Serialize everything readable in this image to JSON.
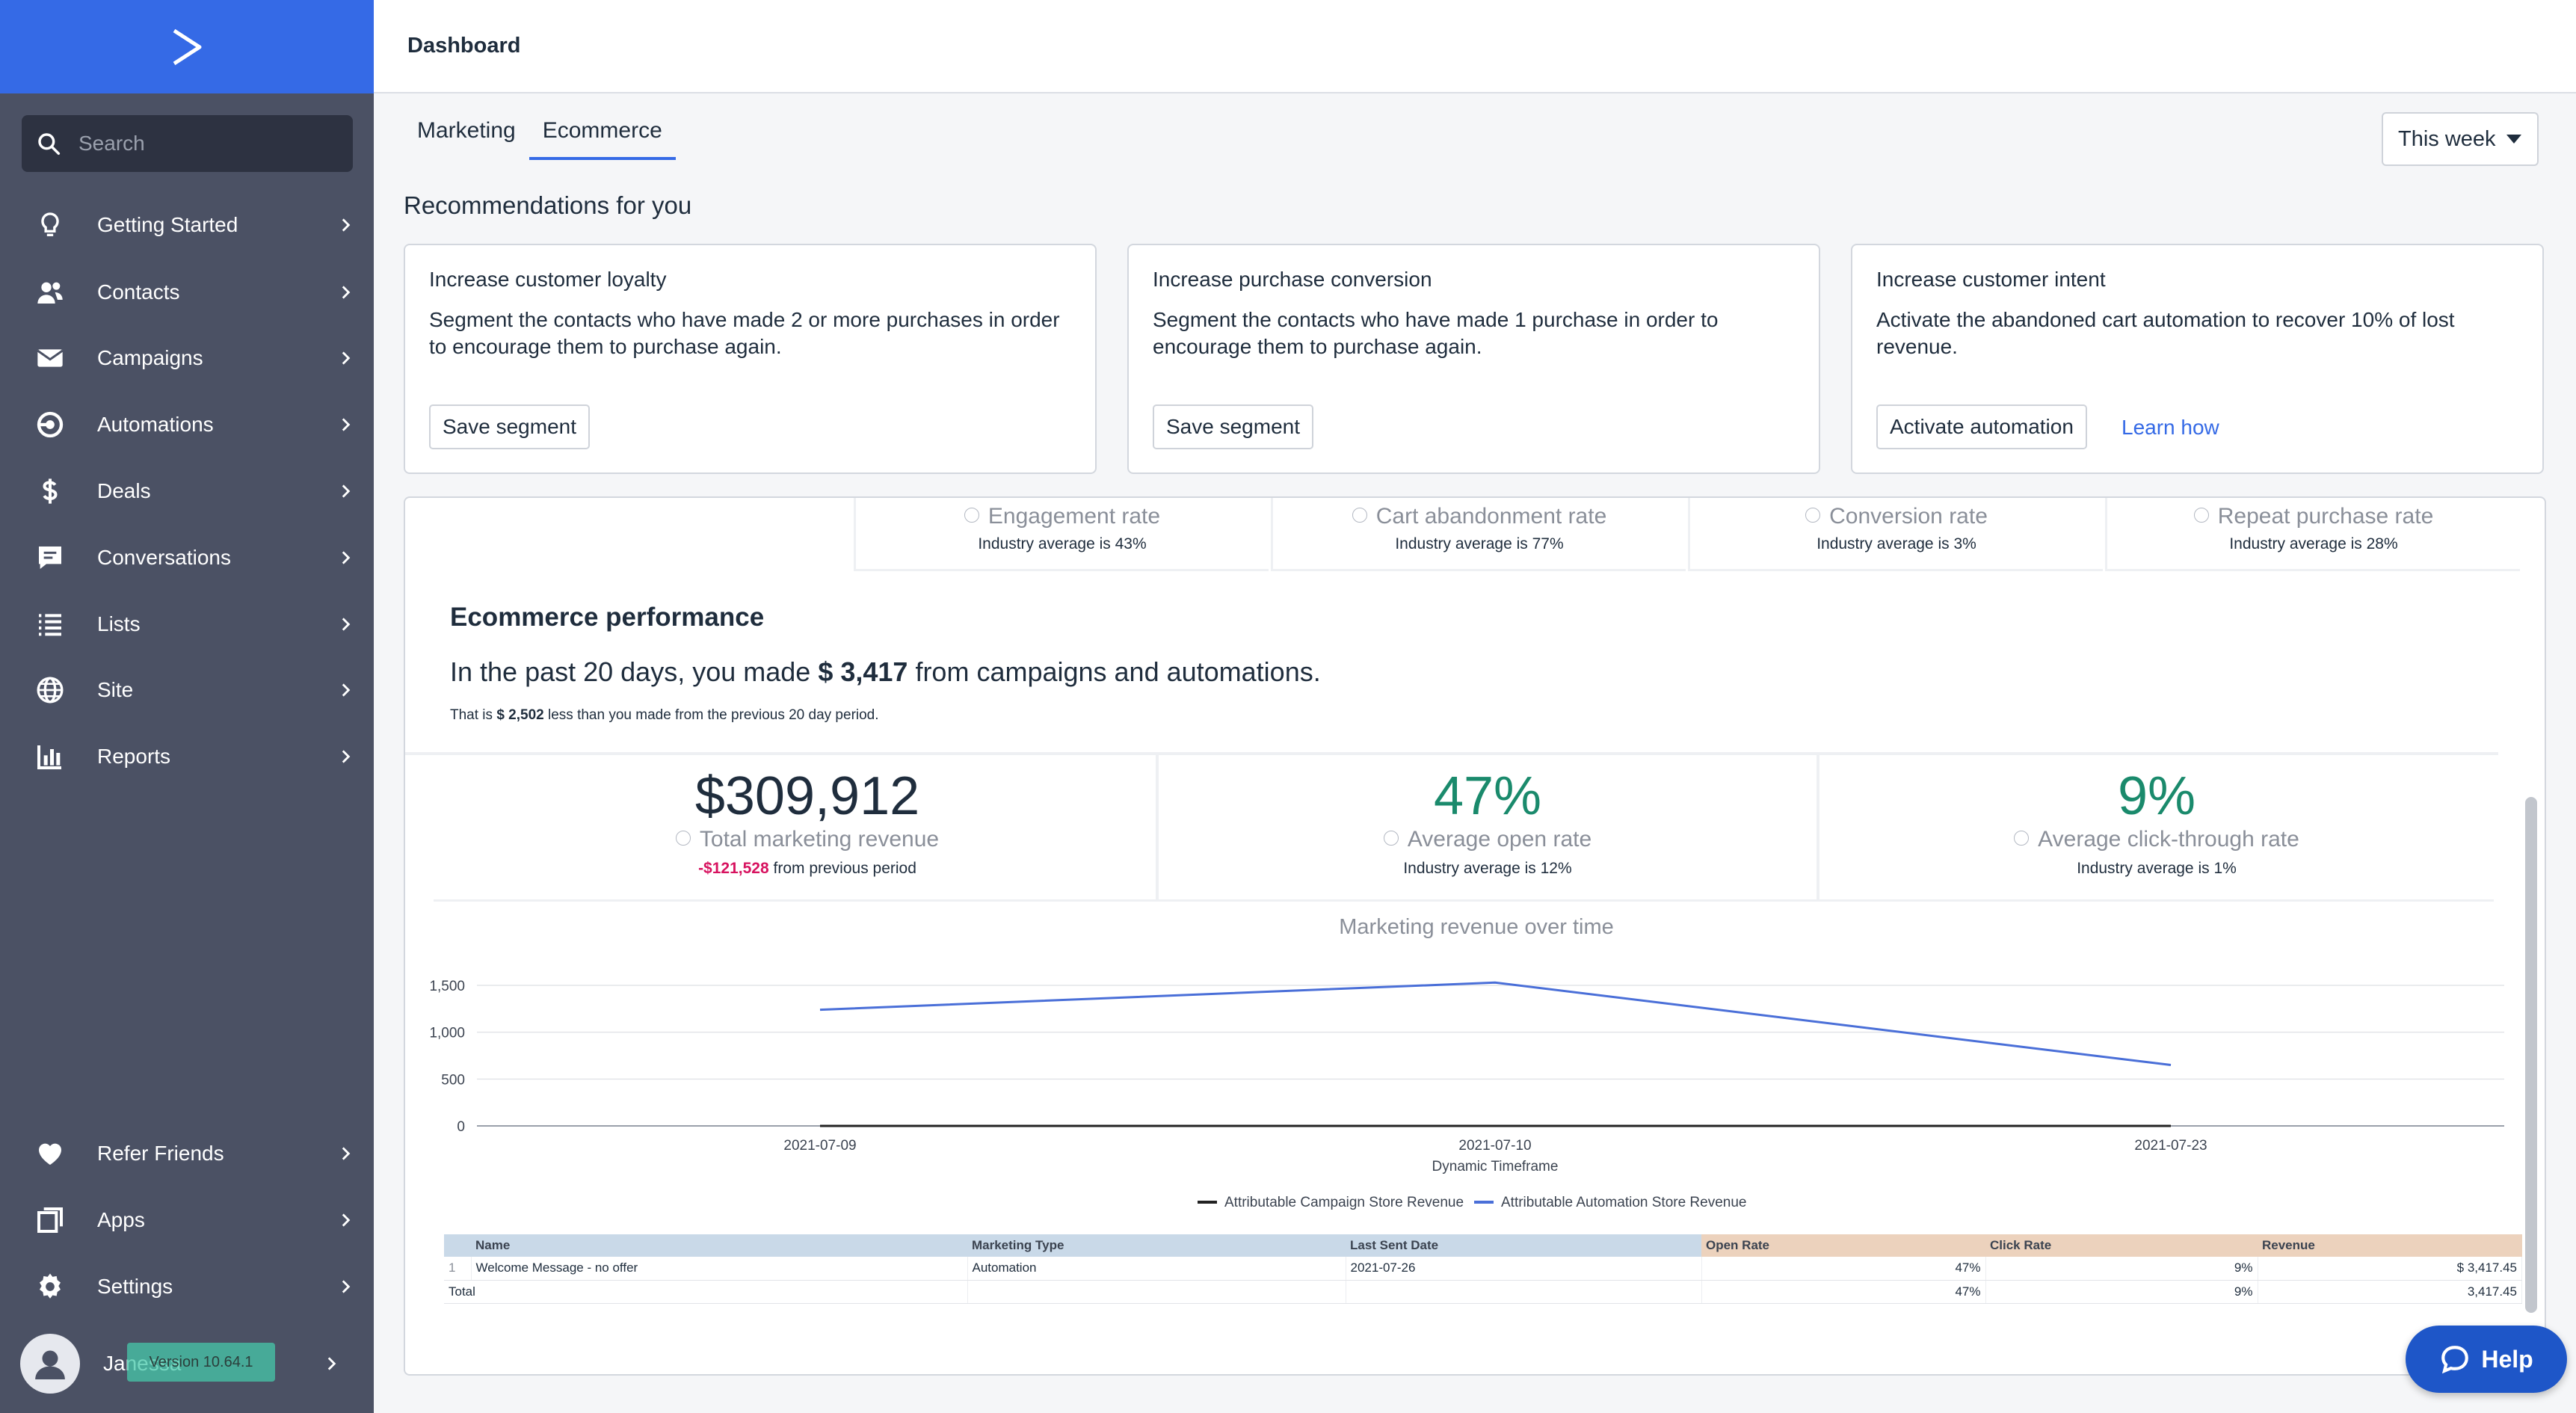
{
  "sidebar": {
    "search_placeholder": "Search",
    "items": [
      {
        "label": "Getting Started",
        "icon": "lightbulb-icon"
      },
      {
        "label": "Contacts",
        "icon": "contacts-icon"
      },
      {
        "label": "Campaigns",
        "icon": "envelope-icon"
      },
      {
        "label": "Automations",
        "icon": "automation-icon"
      },
      {
        "label": "Deals",
        "icon": "dollar-icon"
      },
      {
        "label": "Conversations",
        "icon": "chat-icon"
      },
      {
        "label": "Lists",
        "icon": "list-icon"
      },
      {
        "label": "Site",
        "icon": "globe-icon"
      },
      {
        "label": "Reports",
        "icon": "bar-chart-icon"
      }
    ],
    "bottom_items": [
      {
        "label": "Refer Friends",
        "icon": "heart-icon"
      },
      {
        "label": "Apps",
        "icon": "apps-icon"
      },
      {
        "label": "Settings",
        "icon": "gear-icon"
      }
    ],
    "user_name": "Janessa",
    "version": "Version 10.64.1"
  },
  "header": {
    "title": "Dashboard"
  },
  "tabs": [
    {
      "label": "Marketing"
    },
    {
      "label": "Ecommerce"
    }
  ],
  "period": "This week",
  "recommendations": {
    "title": "Recommendations for you",
    "cards": [
      {
        "title": "Increase customer loyalty",
        "text": "Segment the contacts who have made 2 or more purchases in order to encourage them to purchase again.",
        "button": "Save segment"
      },
      {
        "title": "Increase purchase conversion",
        "text": "Segment the contacts who have made 1 purchase in order to encourage them to purchase again.",
        "button": "Save segment"
      },
      {
        "title": "Increase customer intent",
        "text": "Activate the abandoned cart automation to recover 10% of lost revenue.",
        "button": "Activate automation",
        "link": "Learn how"
      }
    ]
  },
  "metrics": [
    {
      "name": "Engagement rate",
      "avg": "Industry average is 43%"
    },
    {
      "name": "Cart abandonment rate",
      "avg": "Industry average is 77%"
    },
    {
      "name": "Conversion rate",
      "avg": "Industry average is 3%"
    },
    {
      "name": "Repeat purchase rate",
      "avg": "Industry average is 28%"
    }
  ],
  "performance": {
    "title": "Ecommerce performance",
    "summary_pre": "In the past 20 days, you made ",
    "summary_amount": "$ 3,417",
    "summary_post": " from campaigns and automations.",
    "sub_pre": "That is ",
    "sub_amount": "$ 2,502",
    "sub_post": " less than you made from the previous 20 day period.",
    "big": [
      {
        "value": "$309,912",
        "name": "Total marketing revenue",
        "sub_neg": "-$121,528",
        "sub": " from previous period"
      },
      {
        "value": "47%",
        "name": "Average open rate",
        "sub": "Industry average is 12%"
      },
      {
        "value": "9%",
        "name": "Average click-through rate",
        "sub": "Industry average is 1%"
      }
    ]
  },
  "chart_data": {
    "type": "line",
    "title": "Marketing revenue over time",
    "xlabel": "Dynamic Timeframe",
    "ylabel": "",
    "categories": [
      "2021-07-09",
      "2021-07-10",
      "2021-07-23"
    ],
    "yticks": [
      "0",
      "500",
      "1,000",
      "1,500"
    ],
    "ylim": [
      0,
      1500
    ],
    "series": [
      {
        "name": "Attributable Campaign Store Revenue",
        "values": [
          0,
          0,
          0
        ],
        "color": "#222222"
      },
      {
        "name": "Attributable Automation Store Revenue",
        "values": [
          1240,
          1530,
          650
        ],
        "color": "#4a6fd8"
      }
    ],
    "legend": "bottom"
  },
  "table": {
    "headers": [
      "Name",
      "Marketing Type",
      "Last Sent Date",
      "Open Rate",
      "Click Rate",
      "Revenue"
    ],
    "rows": [
      {
        "index": "1",
        "name": "Welcome Message - no offer",
        "type": "Automation",
        "date": "2021-07-26",
        "open": "47%",
        "click": "9%",
        "revenue": "$ 3,417.45"
      }
    ],
    "total": {
      "label": "Total",
      "open": "47%",
      "click": "9%",
      "revenue": "3,417.45"
    }
  },
  "help": "Help",
  "colors": {
    "accent": "#356ae6",
    "sidebar": "#4b5164",
    "green": "#1a8a6c",
    "negative": "#d7125f"
  }
}
